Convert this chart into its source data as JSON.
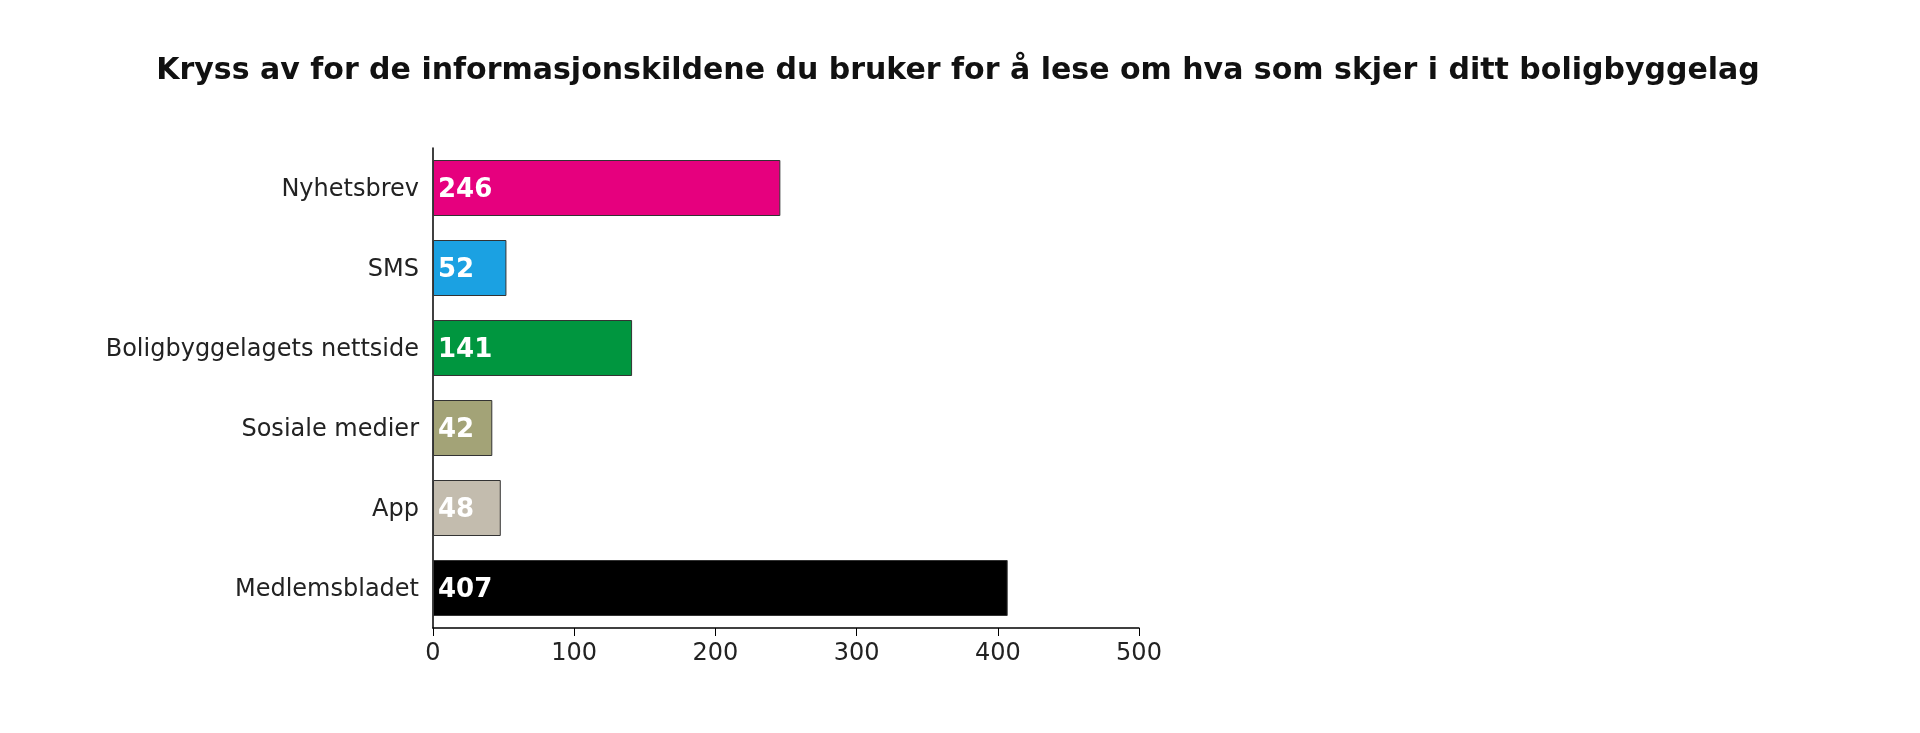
{
  "chart_data": {
    "type": "bar",
    "orientation": "horizontal",
    "title": "Kryss av for de informasjonskildene du bruker for å lese om hva som skjer i ditt boligbyggelag",
    "categories": [
      "Nyhetsbrev",
      "SMS",
      "Boligbyggelagets nettside",
      "Sosiale medier",
      "App",
      "Medlemsbladet"
    ],
    "values": [
      246,
      52,
      141,
      42,
      48,
      407
    ],
    "colors": [
      "#e6007e",
      "#1ba1e2",
      "#00963f",
      "#a3a377",
      "#c3bcae",
      "#000000"
    ],
    "xlim": [
      0,
      500
    ],
    "xticks": [
      0,
      100,
      200,
      300,
      400,
      500
    ],
    "data_labels": true
  }
}
